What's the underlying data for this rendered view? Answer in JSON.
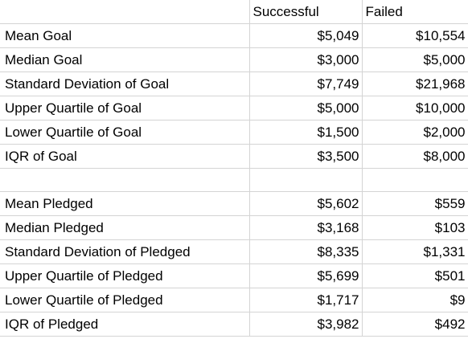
{
  "table": {
    "header": {
      "label": "",
      "successful": "Successful",
      "failed": "Failed"
    },
    "goal_rows": [
      {
        "label": "Mean Goal",
        "successful": "$5,049",
        "failed": "$10,554"
      },
      {
        "label": "Median Goal",
        "successful": "$3,000",
        "failed": "$5,000"
      },
      {
        "label": "Standard Deviation of Goal",
        "successful": "$7,749",
        "failed": "$21,968"
      },
      {
        "label": "Upper Quartile of Goal",
        "successful": "$5,000",
        "failed": "$10,000"
      },
      {
        "label": "Lower Quartile of Goal",
        "successful": "$1,500",
        "failed": "$2,000"
      },
      {
        "label": "IQR of Goal",
        "successful": "$3,500",
        "failed": "$8,000"
      }
    ],
    "pledged_rows": [
      {
        "label": "Mean Pledged",
        "successful": "$5,602",
        "failed": "$559"
      },
      {
        "label": "Median Pledged",
        "successful": "$3,168",
        "failed": "$103"
      },
      {
        "label": "Standard Deviation of Pledged",
        "successful": "$8,335",
        "failed": "$1,331"
      },
      {
        "label": "Upper Quartile of Pledged",
        "successful": "$5,699",
        "failed": "$501"
      },
      {
        "label": "Lower Quartile of Pledged",
        "successful": "$1,717",
        "failed": "$9"
      },
      {
        "label": "IQR of Pledged",
        "successful": "$3,982",
        "failed": "$492"
      }
    ]
  }
}
